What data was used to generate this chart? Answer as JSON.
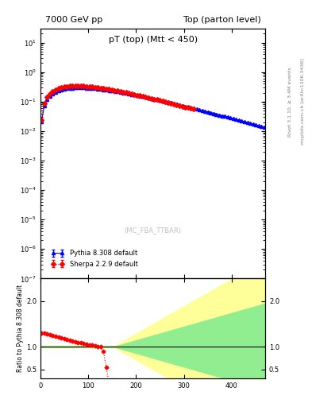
{
  "title_left": "7000 GeV pp",
  "title_right": "Top (parton level)",
  "plot_title": "pT (top) (Mtt < 450)",
  "watermark": "(MC_FBA_TTBAR)",
  "right_label_top": "Rivet 3.1.10, ≥ 3.4M events",
  "right_label_bottom": "mcplots.cern.ch [arXiv:1306.3436]",
  "xlabel": "",
  "ylabel_main": "",
  "ylabel_ratio": "Ratio to Pythia 8.308 default",
  "legend": [
    "Pythia 8.308 default",
    "Sherpa 2.2.9 default"
  ],
  "legend_colors": [
    "blue",
    "red"
  ],
  "ylim_main": [
    1e-07,
    30
  ],
  "ylim_ratio": [
    0.3,
    2.5
  ],
  "ratio_yticks": [
    0.5,
    1.0,
    2.0
  ],
  "xmin": 0,
  "xmax": 470,
  "blue_color": "#0000ff",
  "red_color": "#ff0000",
  "green_band_color": "#90ee90",
  "yellow_band_color": "#ffff99",
  "bg_color": "#ffffff"
}
